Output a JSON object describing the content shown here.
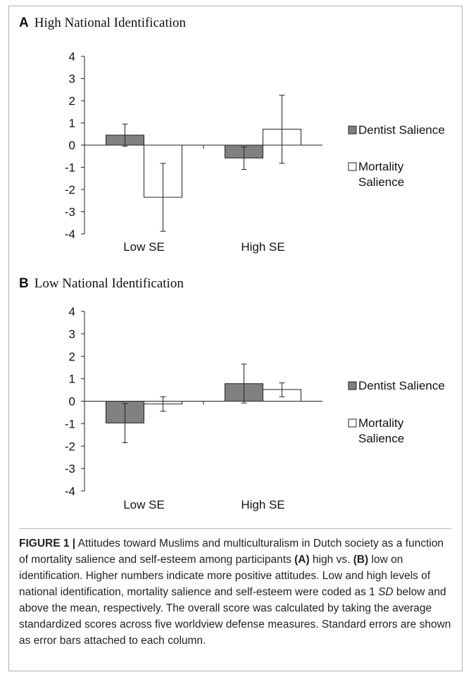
{
  "figure": {
    "caption_label": "FIGURE 1 |",
    "caption_parts": [
      " Attitudes toward Muslims and multiculturalism in Dutch society as a function of mortality salience and self-esteem among participants ",
      "(A)",
      " high vs. ",
      "(B)",
      " low on identification. Higher numbers indicate more positive attitudes. Low and high levels of national identification, mortality salience and self-esteem were coded as 1 ",
      "SD",
      " below and above the mean, respectively. The overall score was calculated by taking the average standardized scores across five worldview defense measures. Standard errors are shown as error bars attached to each column."
    ]
  },
  "chart_data": [
    {
      "panel": "A",
      "title": "High National Identification",
      "type": "bar",
      "categories": [
        "Low SE",
        "High SE"
      ],
      "ylim": [
        -4,
        4
      ],
      "yticks": [
        4,
        3,
        2,
        1,
        0,
        -1,
        -2,
        -3,
        -4
      ],
      "legend_position": "right",
      "series": [
        {
          "name": "Dentist Salience",
          "color": "#808080",
          "values": [
            0.45,
            -0.58
          ],
          "error_low": [
            -0.05,
            -1.1
          ],
          "error_high": [
            0.95,
            -0.08
          ]
        },
        {
          "name": "Mortality Salience",
          "color": "#ffffff",
          "values": [
            -2.35,
            0.72
          ],
          "error_low": [
            -3.88,
            -0.82
          ],
          "error_high": [
            -0.82,
            2.25
          ]
        }
      ]
    },
    {
      "panel": "B",
      "title": "Low National Identification",
      "type": "bar",
      "categories": [
        "Low SE",
        "High SE"
      ],
      "ylim": [
        -4,
        4
      ],
      "yticks": [
        4,
        3,
        2,
        1,
        0,
        -1,
        -2,
        -3,
        -4
      ],
      "legend_position": "right",
      "series": [
        {
          "name": "Dentist Salience",
          "color": "#808080",
          "values": [
            -0.97,
            0.78
          ],
          "error_low": [
            -1.85,
            -0.08
          ],
          "error_high": [
            -0.1,
            1.65
          ]
        },
        {
          "name": "Mortality Salience",
          "color": "#ffffff",
          "values": [
            -0.12,
            0.52
          ],
          "error_low": [
            -0.45,
            0.2
          ],
          "error_high": [
            0.2,
            0.82
          ]
        }
      ]
    }
  ]
}
